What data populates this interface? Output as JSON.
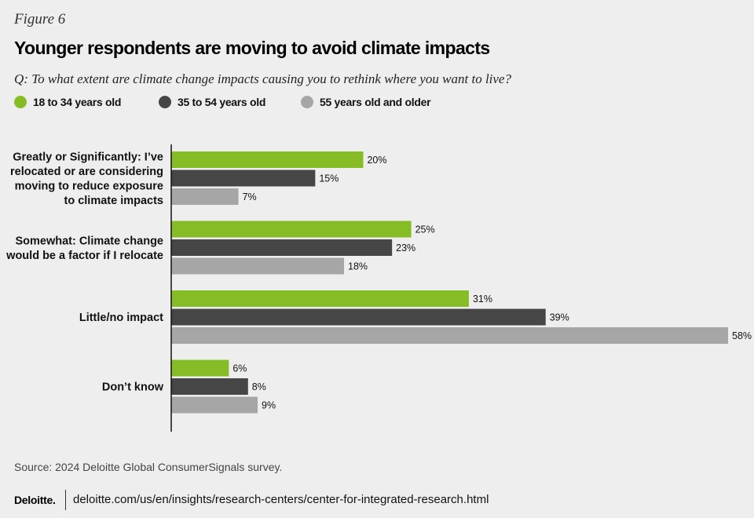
{
  "figure_label": "Figure 6",
  "title": "Younger respondents are moving to avoid climate impacts",
  "question": "Q: To what extent are climate change impacts causing you to rethink where you want to live?",
  "legend": [
    {
      "label": "18 to 34 years old",
      "color": "#86bc25"
    },
    {
      "label": "35 to 54 years old",
      "color": "#464646"
    },
    {
      "label": "55 years old and older",
      "color": "#a6a6a6"
    }
  ],
  "chart_data": {
    "type": "bar",
    "orientation": "horizontal",
    "categories": [
      "Greatly or Significantly: I’ve relocated or are considering moving to reduce exposure to climate impacts",
      "Somewhat: Climate change would be a factor if I relocate",
      "Little/no impact",
      "Don’t know"
    ],
    "category_lines": [
      [
        "Greatly or Significantly: I’ve",
        "relocated or are considering",
        "moving to reduce exposure",
        "to climate impacts"
      ],
      [
        "Somewhat: Climate change",
        "would be a factor if I relocate"
      ],
      [
        "Little/no impact"
      ],
      [
        "Don’t know"
      ]
    ],
    "series": [
      {
        "name": "18 to 34 years old",
        "color": "#86bc25",
        "values": [
          20,
          25,
          31,
          6
        ]
      },
      {
        "name": "35 to 54 years old",
        "color": "#464646",
        "values": [
          15,
          23,
          39,
          8
        ]
      },
      {
        "name": "55 years old and older",
        "color": "#a6a6a6",
        "values": [
          7,
          18,
          58,
          9
        ]
      }
    ],
    "value_suffix": "%",
    "xlim": [
      0,
      58
    ],
    "title": "Younger respondents are moving to avoid climate impacts",
    "xlabel": "",
    "ylabel": ""
  },
  "source": "Source: 2024 Deloitte Global ConsumerSignals survey.",
  "footer": {
    "logo": "Deloitte.",
    "url": "deloitte.com/us/en/insights/research-centers/center-for-integrated-research.html"
  }
}
